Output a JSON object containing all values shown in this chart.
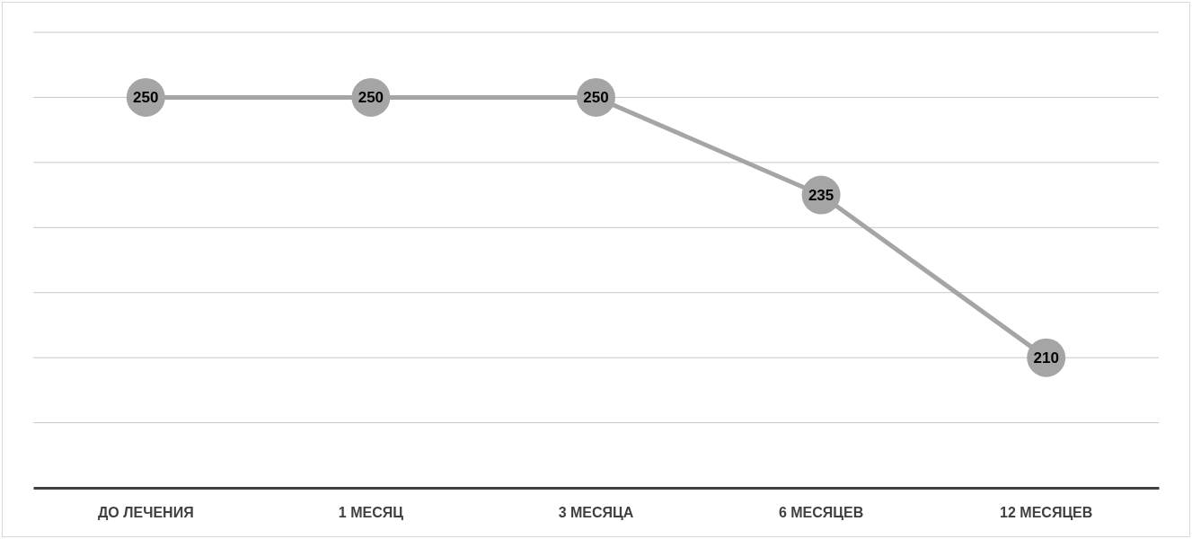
{
  "chart_data": {
    "type": "line",
    "categories": [
      "ДО ЛЕЧЕНИЯ",
      "1 МЕСЯЦ",
      "3 МЕСЯЦА",
      "6 МЕСЯЦЕВ",
      "12 МЕСЯЦЕВ"
    ],
    "series": [
      {
        "color": "#a5a5a5",
        "values": [
          250,
          250,
          250,
          235,
          210
        ]
      }
    ],
    "ylim": [
      190,
      260
    ],
    "yticks": [
      {
        "value": 200,
        "label": null
      },
      {
        "value": 210,
        "label": null
      },
      {
        "value": 220,
        "label": null
      },
      {
        "value": 230,
        "label": null
      },
      {
        "value": 240,
        "label": null
      },
      {
        "value": 250,
        "label": null
      },
      {
        "value": 260,
        "label": null
      }
    ],
    "grid": "y",
    "tick_labels": "x",
    "data_labels": true,
    "marker": "circle"
  }
}
